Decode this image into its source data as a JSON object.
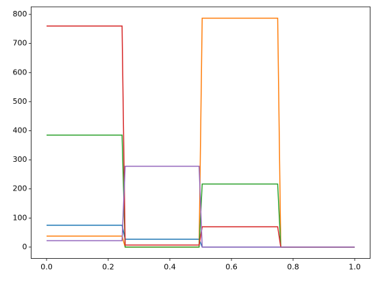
{
  "chart_data": {
    "type": "line",
    "x": [
      0,
      0.245,
      0.255,
      0.495,
      0.505,
      0.75,
      0.76,
      1.0
    ],
    "series": [
      {
        "color": "#1f77b4",
        "values": [
          75,
          75,
          27,
          27,
          0,
          0,
          0,
          0
        ]
      },
      {
        "color": "#ff7f0e",
        "values": [
          38,
          38,
          0,
          0,
          787,
          787,
          0,
          0
        ]
      },
      {
        "color": "#2ca02c",
        "values": [
          385,
          385,
          0,
          0,
          217,
          217,
          0,
          0
        ]
      },
      {
        "color": "#d62728",
        "values": [
          760,
          760,
          7,
          7,
          70,
          70,
          0,
          0
        ]
      },
      {
        "color": "#9467bd",
        "values": [
          22,
          22,
          278,
          278,
          0,
          0,
          0,
          0
        ]
      }
    ],
    "xlim": [
      -0.05,
      1.05
    ],
    "xticks": [
      {
        "value": 0,
        "label": "0.0"
      },
      {
        "value": 0.2,
        "label": "0.2"
      },
      {
        "value": 0.4,
        "label": "0.4"
      },
      {
        "value": 0.6,
        "label": "0.6"
      },
      {
        "value": 0.8,
        "label": "0.8"
      },
      {
        "value": 1.0,
        "label": "1.0"
      }
    ],
    "ylim": [
      -39,
      826
    ],
    "yticks": [
      0,
      100,
      200,
      300,
      400,
      500,
      600,
      700,
      800
    ],
    "grid": false
  }
}
